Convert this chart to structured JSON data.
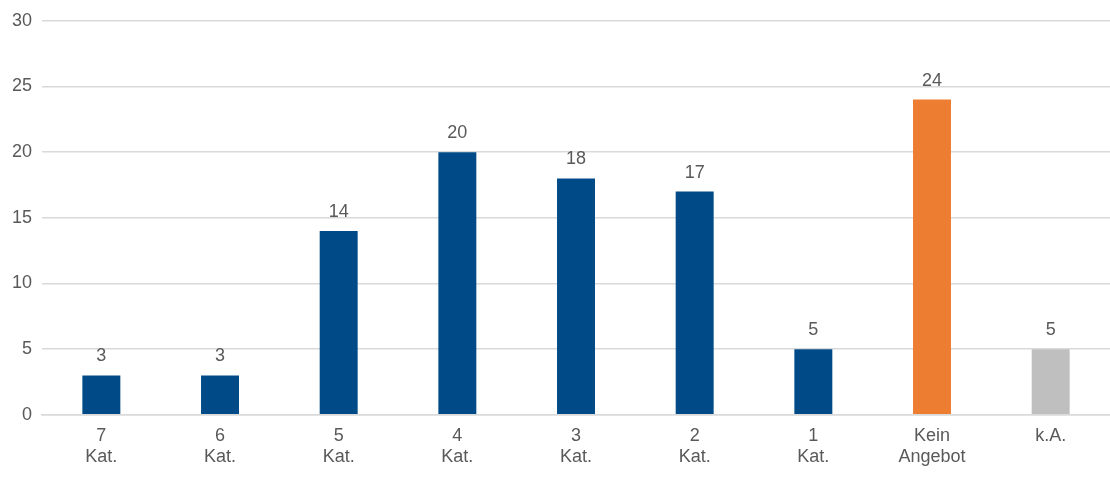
{
  "chart_data": {
    "type": "bar",
    "categories": [
      "7\nKat.",
      "6\nKat.",
      "5\nKat.",
      "4\nKat.",
      "3\nKat.",
      "2\nKat.",
      "1\nKat.",
      "Kein\nAngebot",
      "k.A."
    ],
    "values": [
      3,
      3,
      14,
      20,
      18,
      17,
      5,
      24,
      5
    ],
    "colors": [
      "#004b87",
      "#004b87",
      "#004b87",
      "#004b87",
      "#004b87",
      "#004b87",
      "#004b87",
      "#ed7d31",
      "#bfbfbf"
    ],
    "ylim": [
      0,
      30
    ],
    "yticks": [
      0,
      5,
      10,
      15,
      20,
      25,
      30
    ],
    "grid": "y",
    "legend": false,
    "data_labels": true
  }
}
